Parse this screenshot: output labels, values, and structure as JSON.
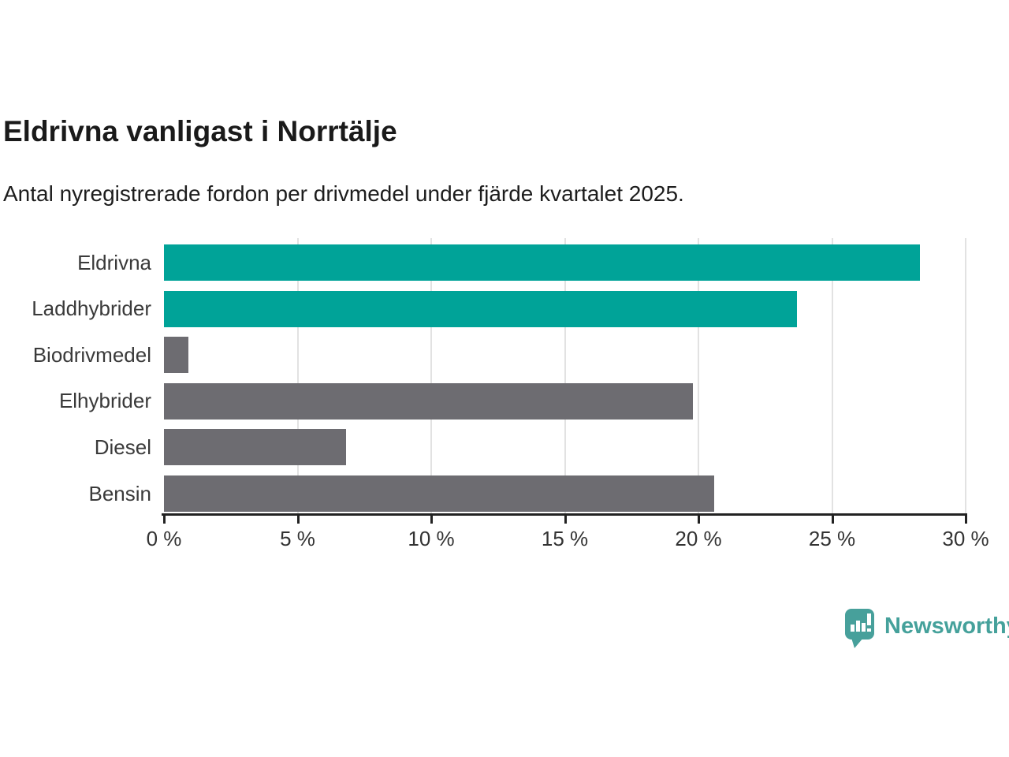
{
  "header": {
    "title": "Eldrivna vanligast i Norrtälje",
    "subtitle": "Antal nyregistrerade fordon per drivmedel under fjärde kvartalet 2025."
  },
  "chart_data": {
    "type": "bar",
    "orientation": "horizontal",
    "title": "Eldrivna vanligast i Norrtälje",
    "subtitle": "Antal nyregistrerade fordon per drivmedel under fjärde kvartalet 2025.",
    "categories": [
      "Eldrivna",
      "Laddhybrider",
      "Biodrivmedel",
      "Elhybrider",
      "Diesel",
      "Bensin"
    ],
    "values": [
      28.3,
      23.7,
      0.9,
      19.8,
      6.8,
      20.6
    ],
    "bar_colors": [
      "#00a398",
      "#00a398",
      "#6d6c71",
      "#6d6c71",
      "#6d6c71",
      "#6d6c71"
    ],
    "highlight_color": "#00a398",
    "default_color": "#6d6c71",
    "xlabel": "",
    "ylabel": "",
    "xlim": [
      0,
      30
    ],
    "x_ticks": [
      0,
      5,
      10,
      15,
      20,
      25,
      30
    ],
    "x_tick_labels": [
      "0 %",
      "5 %",
      "10 %",
      "15 %",
      "20 %",
      "25 %",
      "30 %"
    ],
    "grid": "vertical-only",
    "legend": "none"
  },
  "footer": {
    "brand": "Newsworthy",
    "brand_color": "#45a19b",
    "logo_icon": "newsworthy-speech-bubble-bar-chart-icon"
  }
}
